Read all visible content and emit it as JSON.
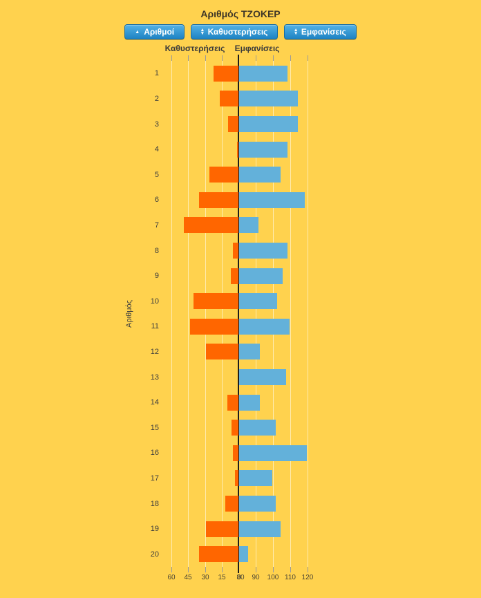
{
  "title": "Αριθμός ΤΖΟΚΕΡ",
  "toolbar": {
    "buttons": [
      {
        "label": "Αριθμοί",
        "sort_state": "asc"
      },
      {
        "label": "Καθυστερήσεις",
        "sort_state": "both"
      },
      {
        "label": "Εμφανίσεις",
        "sort_state": "both"
      }
    ],
    "icon_asc": "▲",
    "icon_up": "▴",
    "icon_down": "▾"
  },
  "axis_headers": {
    "left": "Καθυστερήσεις",
    "right": "Εμφανίσεις"
  },
  "y_axis_title": "Αριθμός",
  "colors": {
    "background": "#FFD24E",
    "delay_bar": "#FF6600",
    "appearance_bar": "#63B1DA",
    "grid_line": "rgba(255,255,255,0.55)",
    "center_line": "#1C1C1C",
    "button_top": "#54B2E5",
    "button_bottom": "#1E83C4",
    "button_border": "#176DA4",
    "text_dark": "#3E3627"
  },
  "axis": {
    "left_ticks": [
      60,
      45,
      30,
      15
    ],
    "center_labels": [
      "0",
      "80"
    ],
    "right_ticks": [
      90,
      100,
      110,
      120
    ],
    "left_units_per_gridline": 15,
    "right_units_per_gridline": 10
  },
  "chart_data": {
    "type": "bar",
    "orientation": "horizontal-diverging",
    "title": "Αριθμός ΤΖΟΚΕΡ",
    "ylabel": "Αριθμός",
    "legend_position": "top",
    "grid": true,
    "categories": [
      1,
      2,
      3,
      4,
      5,
      6,
      7,
      8,
      9,
      10,
      11,
      12,
      13,
      14,
      15,
      16,
      17,
      18,
      19,
      20
    ],
    "series": [
      {
        "name": "Καθυστερήσεις",
        "direction": "left",
        "axis_range": [
          0,
          66
        ],
        "values": [
          22,
          17,
          9,
          1,
          26,
          35,
          49,
          5,
          7,
          40,
          43,
          29,
          0,
          10,
          6,
          5,
          3,
          12,
          29,
          35
        ]
      },
      {
        "name": "Εμφανίσεις",
        "direction": "right",
        "axis_range": [
          80,
          120
        ],
        "values": [
          108,
          114,
          114,
          108,
          104,
          118,
          91,
          108,
          105,
          102,
          109,
          92,
          107,
          92,
          101,
          119,
          99,
          101,
          104,
          85
        ]
      }
    ]
  }
}
